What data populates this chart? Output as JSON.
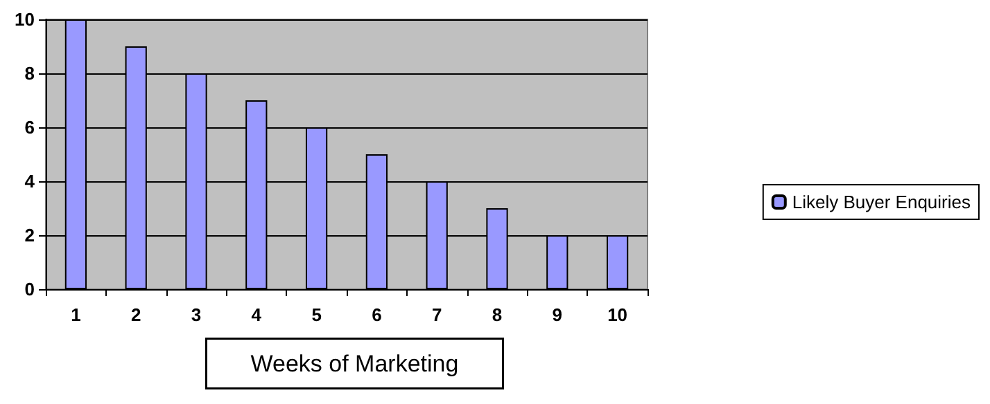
{
  "chart_data": {
    "type": "bar",
    "xlabel": "Weeks of Marketing",
    "categories": [
      "1",
      "2",
      "3",
      "4",
      "5",
      "6",
      "7",
      "8",
      "9",
      "10"
    ],
    "series": [
      {
        "name": "Likely Buyer Enquiries",
        "color": "#9999ff",
        "values": [
          10,
          9,
          8,
          7,
          6,
          5,
          4,
          3,
          2,
          2
        ]
      }
    ],
    "ylim": [
      0,
      10
    ],
    "yticks": [
      0,
      2,
      4,
      6,
      8,
      10
    ],
    "grid": "y",
    "legend": "right"
  }
}
